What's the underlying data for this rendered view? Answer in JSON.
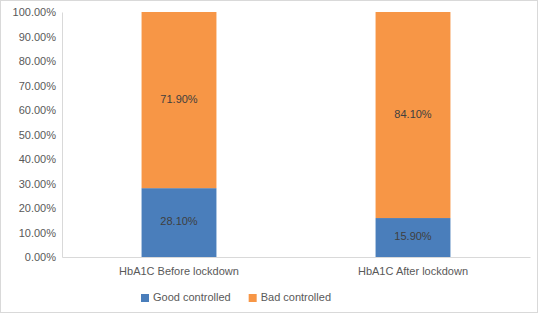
{
  "chart_data": {
    "type": "bar",
    "stacked": true,
    "data_labels": true,
    "legend": "bottom",
    "grid": false,
    "categories": [
      "HbA1C Before lockdown",
      "HbA1C After lockdown"
    ],
    "series": [
      {
        "name": "Good controlled",
        "color": "#4a7ebb",
        "values": [
          28.1,
          15.9
        ],
        "value_labels": [
          "28.10%",
          "15.90%"
        ]
      },
      {
        "name": "Bad controlled",
        "color": "#f79646",
        "values": [
          71.9,
          84.1
        ],
        "value_labels": [
          "71.90%",
          "84.10%"
        ]
      }
    ],
    "ylim": [
      0,
      100
    ],
    "yticks": [
      {
        "value": 0,
        "label": "0.00%"
      },
      {
        "value": 10,
        "label": "10.00%"
      },
      {
        "value": 20,
        "label": "20.00%"
      },
      {
        "value": 30,
        "label": "30.00%"
      },
      {
        "value": 40,
        "label": "40.00%"
      },
      {
        "value": 50,
        "label": "50.00%"
      },
      {
        "value": 60,
        "label": "60.00%"
      },
      {
        "value": 70,
        "label": "70.00%"
      },
      {
        "value": 80,
        "label": "80.00%"
      },
      {
        "value": 90,
        "label": "90.00%"
      },
      {
        "value": 100,
        "label": "100.00%"
      }
    ]
  }
}
